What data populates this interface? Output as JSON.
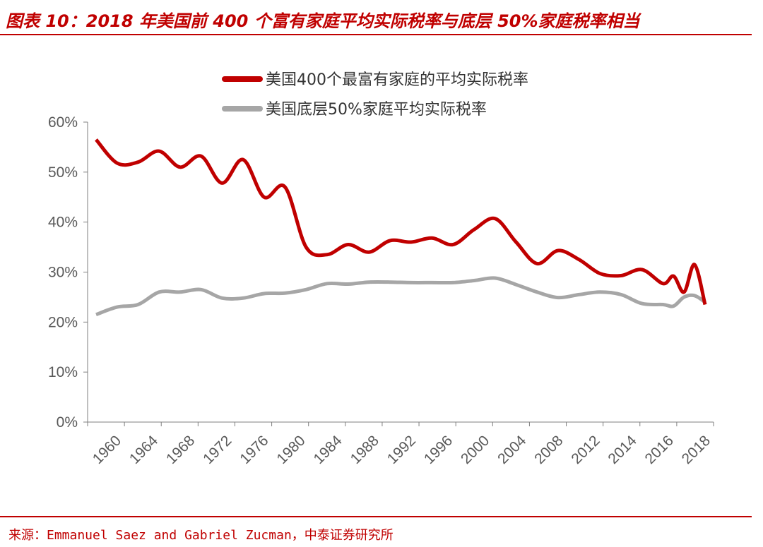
{
  "figure_title": "图表 10：2018 年美国前 400 个富有家庭平均实际税率与底层 50%家庭税率相当",
  "source": "来源：Emmanuel Saez and Gabriel Zucman，中泰证券研究所",
  "colors": {
    "accent": "#c00000",
    "series_top400": "#c00000",
    "series_bottom50": "#a6a6a6",
    "axis_text": "#595959"
  },
  "chart_data": {
    "type": "line",
    "title": "",
    "xlabel": "",
    "ylabel": "",
    "x_range": [
      1960,
      2018
    ],
    "ylim": [
      0,
      60
    ],
    "y_ticks": [
      "0%",
      "10%",
      "20%",
      "30%",
      "40%",
      "50%",
      "60%"
    ],
    "x_ticks": [
      "1960",
      "1964",
      "1968",
      "1972",
      "1976",
      "1980",
      "1984",
      "1988",
      "1992",
      "1996",
      "2000",
      "2004",
      "2008",
      "2012",
      "2014",
      "2016",
      "2018"
    ],
    "grid": false,
    "legend_position": "top-center",
    "series": [
      {
        "name": "美国400个最富有家庭的平均实际税率",
        "color": "#c00000",
        "x": [
          1960,
          1962,
          1964,
          1966,
          1968,
          1970,
          1972,
          1974,
          1976,
          1978,
          1980,
          1982,
          1984,
          1986,
          1988,
          1990,
          1992,
          1994,
          1996,
          1998,
          2000,
          2002,
          2004,
          2006,
          2008,
          2010,
          2012,
          2014,
          2015,
          2016,
          2017,
          2018
        ],
        "values": [
          56.5,
          51.8,
          52.0,
          54.2,
          51.0,
          53.2,
          47.8,
          52.5,
          45.0,
          47.0,
          35.0,
          33.5,
          35.5,
          34.0,
          36.3,
          36.0,
          36.8,
          35.5,
          38.5,
          40.7,
          36.0,
          31.7,
          34.3,
          32.5,
          29.7,
          29.3,
          30.5,
          27.7,
          29.2,
          26.0,
          31.5,
          23.5
        ]
      },
      {
        "name": "美国底层50%家庭平均实际税率",
        "color": "#a6a6a6",
        "x": [
          1960,
          1962,
          1964,
          1966,
          1968,
          1970,
          1972,
          1974,
          1976,
          1978,
          1980,
          1982,
          1984,
          1986,
          1988,
          1990,
          1992,
          1994,
          1996,
          1998,
          2000,
          2002,
          2004,
          2006,
          2008,
          2010,
          2012,
          2014,
          2015,
          2016,
          2017,
          2018
        ],
        "values": [
          21.5,
          23.0,
          23.5,
          26.0,
          26.0,
          26.5,
          24.8,
          24.8,
          25.7,
          25.8,
          26.5,
          27.7,
          27.6,
          28.0,
          28.0,
          27.9,
          27.9,
          27.9,
          28.3,
          28.8,
          27.5,
          26.0,
          24.9,
          25.5,
          26.0,
          25.5,
          23.7,
          23.5,
          23.2,
          25.0,
          25.3,
          24.0
        ]
      }
    ]
  }
}
